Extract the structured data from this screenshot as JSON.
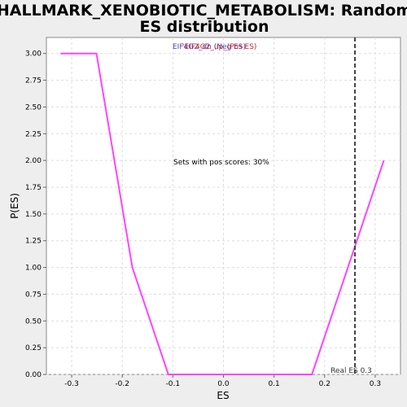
{
  "chart_data": {
    "type": "line",
    "title": "HALLMARK_XENOBIOTIC_METABOLISM: Random ES distribution",
    "title_lines": [
      "HALLMARK_XENOBIOTIC_METABOLISM: Random",
      "ES distribution"
    ],
    "xlabel": "ES",
    "ylabel": "P(ES)",
    "xlim": [
      -0.35,
      0.35
    ],
    "ylim": [
      0.0,
      3.15
    ],
    "x_ticks": [
      -0.3,
      -0.2,
      -0.1,
      0.0,
      0.1,
      0.2,
      0.3
    ],
    "x_tick_labels": [
      "-0.3",
      "-0.2",
      "-0.1",
      "0.0",
      "0.1",
      "0.2",
      "0.3"
    ],
    "y_ticks": [
      0.0,
      0.25,
      0.5,
      0.75,
      1.0,
      1.25,
      1.5,
      1.75,
      2.0,
      2.25,
      2.5,
      2.75,
      3.0
    ],
    "y_tick_labels": [
      "0.00",
      "0.25",
      "0.50",
      "0.75",
      "1.00",
      "1.25",
      "1.50",
      "1.75",
      "2.00",
      "2.25",
      "2.50",
      "2.75",
      "3.00"
    ],
    "grid": true,
    "series": [
      {
        "color": "#ff44ff",
        "x": [
          -0.322,
          -0.251,
          -0.18,
          -0.109,
          -0.038,
          0.033,
          0.104,
          0.175,
          0.246,
          0.317
        ],
        "y": [
          3.0,
          3.0,
          1.0,
          0.0,
          0.0,
          0.0,
          0.0,
          0.0,
          1.0,
          2.0
        ]
      }
    ],
    "real_es": 0.26,
    "real_es_label": "Real ES 0.3",
    "real_es_color": "#404040",
    "annotations": {
      "sets_pos": "Sets with pos scores: 30%",
      "header_overlap_a": "'EIF4G2_up_(Pos ES)",
      "header_overlap_b": "EIF4G2_dn (Neg ES)",
      "header_color_a": "#cc2222",
      "header_color_b": "#4444cc"
    },
    "colors": {
      "background": "#eeeeee",
      "plot_bg": "#ffffff",
      "grid": "#dddddd"
    }
  }
}
